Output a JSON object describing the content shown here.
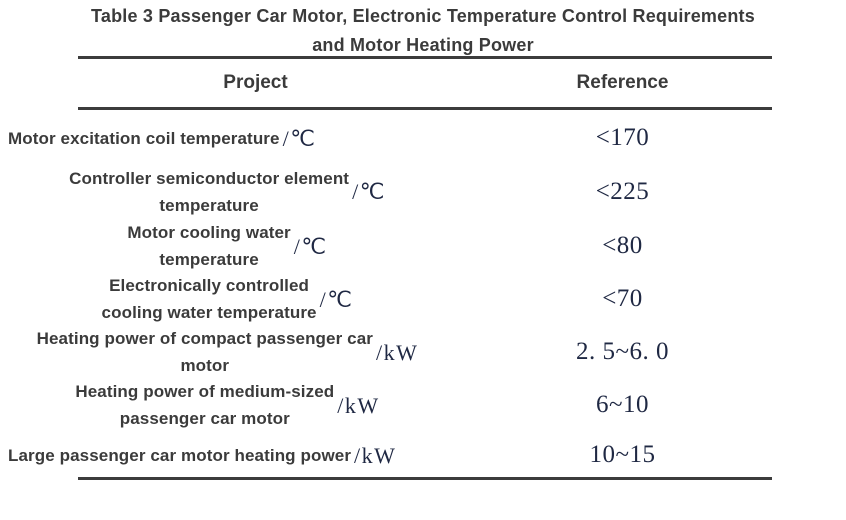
{
  "table": {
    "title_line1": "Table 3 Passenger Car Motor, Electronic Temperature Control Requirements",
    "title_line2": "and Motor Heating Power",
    "header": {
      "project": "Project",
      "reference": "Reference"
    },
    "rows": [
      {
        "line1": "Motor excitation coil temperature",
        "line2": "",
        "unit": "/℃",
        "value": "<170"
      },
      {
        "line1": "Controller semiconductor element",
        "line2": "temperature",
        "unit": "/℃",
        "value": "<225"
      },
      {
        "line1": "Motor cooling water",
        "line2": "temperature",
        "unit": "/℃",
        "value": "<80"
      },
      {
        "line1": "Electronically controlled",
        "line2": "cooling water temperature",
        "unit": "/℃",
        "value": "<70"
      },
      {
        "line1": "Heating power of compact passenger car",
        "line2": "motor",
        "unit": "/kW",
        "value": "2. 5~6. 0"
      },
      {
        "line1": "Heating power of medium-sized",
        "line2": "passenger car motor",
        "unit": "/kW",
        "value": "6~10"
      },
      {
        "line1": "Large passenger car motor heating power",
        "line2": "",
        "unit": "/kW",
        "value": "10~15"
      }
    ]
  },
  "colors": {
    "heading_text": "#3b3b3b",
    "serif_text": "#1f2843",
    "rule": "#3c3c3c",
    "background": "#ffffff"
  },
  "chart_data": {
    "type": "table",
    "title": "Table 3 Passenger Car Motor, Electronic Temperature Control Requirements and Motor Heating Power",
    "columns": [
      "Project",
      "Reference"
    ],
    "rows": [
      [
        "Motor excitation coil temperature /℃",
        "<170"
      ],
      [
        "Controller semiconductor element temperature /℃",
        "<225"
      ],
      [
        "Motor cooling water temperature /℃",
        "<80"
      ],
      [
        "Electronically controlled cooling water temperature /℃",
        "<70"
      ],
      [
        "Heating power of compact passenger car motor /kW",
        "2. 5~6. 0"
      ],
      [
        "Heating power of medium-sized passenger car motor /kW",
        "6~10"
      ],
      [
        "Large passenger car motor heating power /kW",
        "10~15"
      ]
    ]
  }
}
